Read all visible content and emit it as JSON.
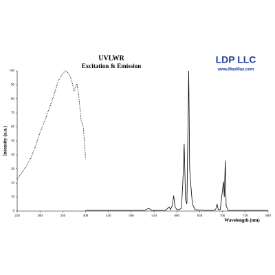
{
  "chart_data": {
    "type": "line",
    "title": "UVLWR",
    "subtitle": "Excitation & Emission",
    "annotations": [
      "LDP LLC",
      "www.MaxMax.com"
    ],
    "x_label": "Wavelength (nm)",
    "y_label": "Intensity (a.u.)",
    "xlim": [
      250,
      800
    ],
    "xticks": [
      250,
      300,
      350,
      400,
      450,
      500,
      550,
      600,
      650,
      700,
      750,
      800
    ],
    "ylim": [
      0,
      100
    ],
    "yticks": [
      0,
      10,
      20,
      30,
      40,
      50,
      60,
      70,
      80,
      90,
      100
    ],
    "grid": false,
    "series": [
      {
        "color": "#000000",
        "dash": "dotted",
        "x": [
          250,
          260,
          270,
          280,
          290,
          300,
          310,
          320,
          330,
          340,
          350,
          355,
          360,
          365,
          370,
          375,
          378,
          381,
          385,
          390,
          395,
          400
        ],
        "values": [
          23,
          27,
          32,
          38,
          46,
          56,
          64,
          73,
          82,
          93,
          98,
          100,
          99,
          97,
          92,
          86,
          88,
          91,
          82,
          65,
          60,
          37
        ]
      },
      {
        "color": "#000000",
        "dash": "solid",
        "x": [
          400,
          530,
          538,
          545,
          575,
          580,
          583,
          586,
          590,
          593,
          596,
          600,
          605,
          610,
          613,
          616,
          619,
          622,
          626,
          628,
          631,
          634,
          640,
          660,
          680,
          685,
          688,
          691,
          695,
          699,
          702,
          704,
          706,
          708,
          712,
          730,
          800
        ],
        "values": [
          0.5,
          0.5,
          2,
          0.5,
          0.5,
          2,
          3,
          1,
          4,
          11,
          3,
          1,
          1,
          2,
          20,
          48,
          8,
          5,
          100,
          30,
          17,
          5,
          1,
          0.5,
          0.5,
          1,
          5,
          1,
          1,
          12,
          21,
          10,
          36,
          4,
          0.5,
          0.5,
          0.5
        ]
      }
    ]
  }
}
